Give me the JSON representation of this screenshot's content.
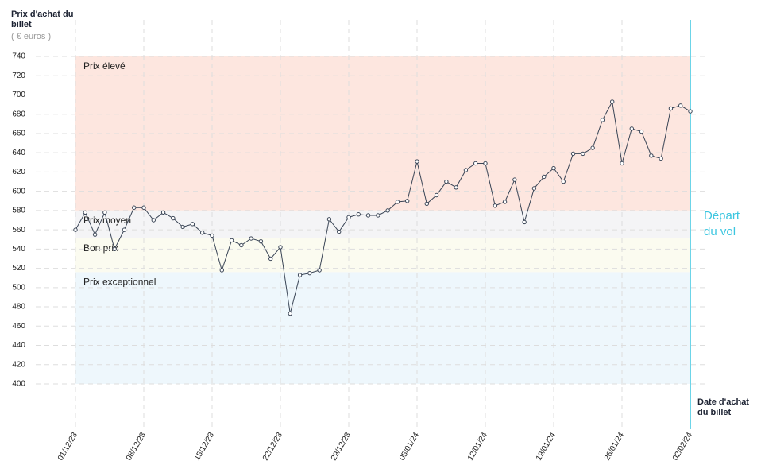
{
  "chart_data": {
    "type": "line",
    "y_label": "Prix d'achat du billet",
    "y_unit": "( € euros )",
    "x_label": "Date d'achat du billet",
    "departure_label": "Départ du vol",
    "departure_color": "#3cc6e0",
    "categories": [
      "01/12/23",
      null,
      null,
      null,
      null,
      null,
      null,
      "08/12/23",
      null,
      null,
      null,
      null,
      null,
      null,
      "15/12/23",
      null,
      null,
      null,
      null,
      null,
      null,
      "22/12/23",
      null,
      null,
      null,
      null,
      null,
      null,
      "29/12/23",
      null,
      null,
      null,
      null,
      null,
      null,
      "05/01/24",
      null,
      null,
      null,
      null,
      null,
      null,
      "12/01/24",
      null,
      null,
      null,
      null,
      null,
      null,
      "19/01/24",
      null,
      null,
      null,
      null,
      null,
      null,
      "26/01/24",
      null,
      null,
      null,
      null,
      null,
      null,
      "02/02/24"
    ],
    "series": [
      {
        "color": "#3a4556",
        "values": [
          560,
          578,
          555,
          578,
          540,
          560,
          583,
          583,
          570,
          578,
          572,
          563,
          566,
          557,
          554,
          518,
          549,
          544,
          551,
          548,
          530,
          542,
          473,
          513,
          515,
          518,
          571,
          558,
          573,
          576,
          575,
          575,
          580,
          589,
          590,
          631,
          587,
          596,
          610,
          604,
          622,
          629,
          629,
          585,
          589,
          612,
          568,
          603,
          615,
          624,
          610,
          639,
          639,
          645,
          674,
          693,
          629,
          665,
          662,
          637,
          634,
          686,
          689,
          683
        ]
      }
    ],
    "bands": [
      {
        "name": "Prix élevé",
        "from": 580,
        "to": 740,
        "color": "#fde6df"
      },
      {
        "name": "Prix moyen",
        "from": 551,
        "to": 580,
        "color": "#f4f4f6"
      },
      {
        "name": "Bon prix",
        "from": 516,
        "to": 551,
        "color": "#fbfbf0"
      },
      {
        "name": "Prix exceptionnel",
        "from": 400,
        "to": 516,
        "color": "#eef7fc"
      }
    ],
    "ylim": [
      400,
      740
    ],
    "yticks": [
      400,
      420,
      440,
      460,
      480,
      500,
      520,
      540,
      560,
      580,
      600,
      620,
      640,
      660,
      680,
      700,
      720,
      740
    ],
    "grid": true
  }
}
